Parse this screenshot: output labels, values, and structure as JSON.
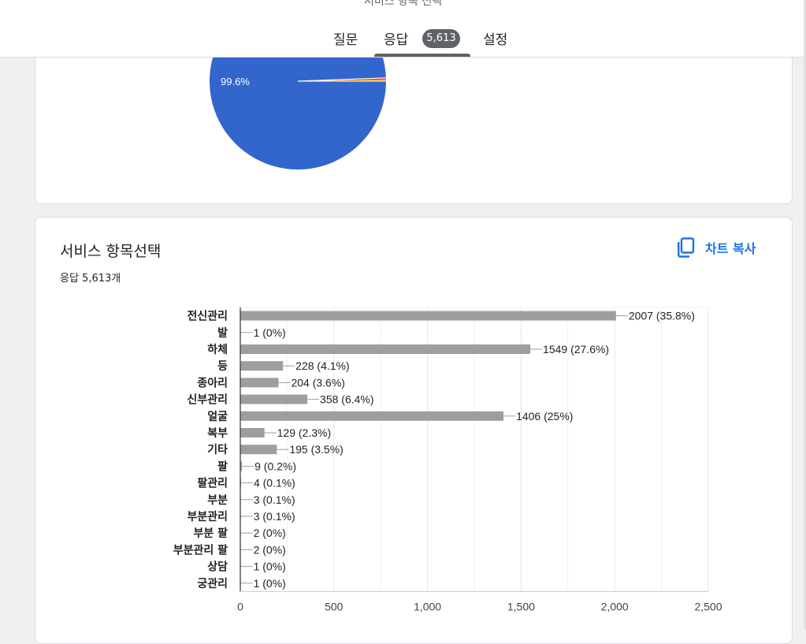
{
  "header": {
    "title_partial": "서비스 항목 선택",
    "tabs": {
      "questions": "질문",
      "responses": "응답",
      "responses_count": "5,613",
      "settings": "설정"
    }
  },
  "pie_card": {
    "slice_label": "99.6%",
    "colors": [
      "#3366cc",
      "#dc3912",
      "#ff9900"
    ]
  },
  "bar_card": {
    "title": "서비스 항목선택",
    "response_count": "응답 5,613개",
    "copy_label": "차트 복사",
    "icons": {
      "copy": "copy-icon"
    }
  },
  "chart_data": {
    "type": "bar",
    "orientation": "horizontal",
    "categories": [
      "전신관리",
      "발",
      "하체",
      "등",
      "종아리",
      "신부관리",
      "얼굴",
      "복부",
      "기타",
      "팔",
      "팔관리",
      "부분",
      "부분관리",
      "부분 팔",
      "부분관리 팔",
      "상담",
      "궁관리"
    ],
    "values": [
      2007,
      1,
      1549,
      228,
      204,
      358,
      1406,
      129,
      195,
      9,
      4,
      3,
      3,
      2,
      2,
      1,
      1
    ],
    "data_labels": [
      "2007 (35.8%)",
      "1 (0%)",
      "1549 (27.6%)",
      "228 (4.1%)",
      "204 (3.6%)",
      "358 (6.4%)",
      "1406 (25%)",
      "129 (2.3%)",
      "195 (3.5%)",
      "9 (0.2%)",
      "4 (0.1%)",
      "3 (0.1%)",
      "3 (0.1%)",
      "2 (0%)",
      "2 (0%)",
      "1 (0%)",
      "1 (0%)"
    ],
    "xlim": [
      0,
      2500
    ],
    "x_ticks": [
      0,
      500,
      1000,
      1500,
      2000,
      2500
    ],
    "x_tick_labels": [
      "0",
      "500",
      "1,000",
      "1,500",
      "2,000",
      "2,500"
    ],
    "bar_color": "#9e9e9e",
    "grid": true
  }
}
